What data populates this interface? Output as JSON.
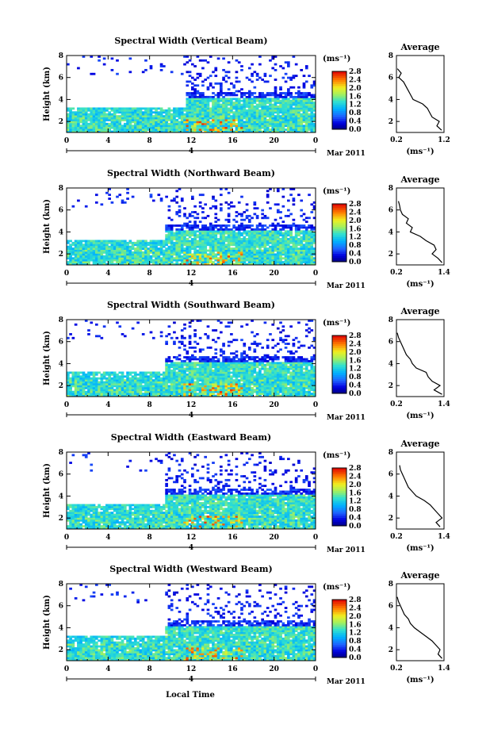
{
  "figure": {
    "xlabel": "Local Time",
    "date_label": "Mar 2011",
    "day_label": "4",
    "unit_label": "(ms⁻¹)",
    "average_title": "Average",
    "average_xlabel": "(ms⁻¹)"
  },
  "chart_data": [
    {
      "type": "heatmap",
      "title": "Spectral Width (Vertical Beam)",
      "ylabel": "Height (km)",
      "x_ticks": [
        "0",
        "4",
        "8",
        "12",
        "16",
        "20",
        "0"
      ],
      "xlim": [
        0,
        24
      ],
      "ylim": [
        1,
        8
      ],
      "y_ticks": [
        "2",
        "4",
        "6",
        "8"
      ],
      "colorbar": {
        "range": [
          0.0,
          2.8
        ],
        "ticks": [
          "2.8",
          "2.4",
          "2.0",
          "1.6",
          "1.2",
          "0.8",
          "0.4",
          "0.0"
        ]
      },
      "avg_profile": {
        "xlim": [
          0.2,
          1.2
        ],
        "x_ticks": [
          "0.2",
          "1.2"
        ],
        "ylim": [
          1,
          8
        ],
        "y_ticks": [
          "2",
          "4",
          "6",
          "8"
        ],
        "height": [
          1.2,
          1.6,
          2.0,
          2.4,
          2.8,
          3.2,
          3.6,
          4.0,
          4.4,
          4.8,
          5.2,
          5.6,
          6.0,
          6.4,
          6.8
        ],
        "width": [
          1.15,
          1.05,
          1.1,
          0.95,
          0.9,
          0.85,
          0.75,
          0.55,
          0.5,
          0.45,
          0.4,
          0.35,
          0.25,
          0.3,
          0.22
        ]
      }
    },
    {
      "type": "heatmap",
      "title": "Spectral Width (Northward Beam)",
      "ylabel": "Height (km)",
      "x_ticks": [
        "0",
        "4",
        "8",
        "12",
        "16",
        "20",
        "0"
      ],
      "xlim": [
        0,
        24
      ],
      "ylim": [
        1,
        8
      ],
      "y_ticks": [
        "2",
        "4",
        "6",
        "8"
      ],
      "colorbar": {
        "range": [
          0.0,
          2.8
        ],
        "ticks": [
          "2.8",
          "2.4",
          "2.0",
          "1.6",
          "1.2",
          "0.8",
          "0.4",
          "0.0"
        ]
      },
      "avg_profile": {
        "xlim": [
          0.2,
          1.4
        ],
        "x_ticks": [
          "0.2",
          "1.4"
        ],
        "ylim": [
          1,
          8
        ],
        "y_ticks": [
          "2",
          "4",
          "6",
          "8"
        ],
        "height": [
          1.2,
          1.6,
          2.0,
          2.4,
          2.8,
          3.2,
          3.6,
          4.0,
          4.4,
          4.8,
          5.2,
          5.6,
          6.0,
          6.4,
          6.8
        ],
        "width": [
          1.35,
          1.25,
          1.1,
          1.2,
          1.15,
          0.95,
          0.8,
          0.55,
          0.6,
          0.45,
          0.5,
          0.35,
          0.3,
          0.28,
          0.25
        ]
      }
    },
    {
      "type": "heatmap",
      "title": "Spectral Width (Southward Beam)",
      "ylabel": "Height (km)",
      "x_ticks": [
        "0",
        "4",
        "8",
        "12",
        "16",
        "20",
        "0"
      ],
      "xlim": [
        0,
        24
      ],
      "ylim": [
        1,
        8
      ],
      "y_ticks": [
        "2",
        "4",
        "6",
        "8"
      ],
      "colorbar": {
        "range": [
          0.0,
          2.8
        ],
        "ticks": [
          "2.8",
          "2.4",
          "2.0",
          "1.6",
          "1.2",
          "0.8",
          "0.4",
          "0.0"
        ]
      },
      "avg_profile": {
        "xlim": [
          0.2,
          1.4
        ],
        "x_ticks": [
          "0.2",
          "1.4"
        ],
        "ylim": [
          1,
          8
        ],
        "y_ticks": [
          "2",
          "4",
          "6",
          "8"
        ],
        "height": [
          1.2,
          1.6,
          2.0,
          2.4,
          2.8,
          3.2,
          3.6,
          4.0,
          4.4,
          4.8,
          5.2,
          5.6,
          6.0,
          6.4,
          6.8
        ],
        "width": [
          1.35,
          1.15,
          1.3,
          1.1,
          1.0,
          0.95,
          0.7,
          0.6,
          0.55,
          0.45,
          0.4,
          0.35,
          0.3,
          0.25,
          0.22
        ]
      }
    },
    {
      "type": "heatmap",
      "title": "Spectral Width (Eastward Beam)",
      "ylabel": "Height (km)",
      "x_ticks": [
        "0",
        "4",
        "8",
        "12",
        "16",
        "20",
        "0"
      ],
      "xlim": [
        0,
        24
      ],
      "ylim": [
        1,
        8
      ],
      "y_ticks": [
        "2",
        "4",
        "6",
        "8"
      ],
      "colorbar": {
        "range": [
          0.0,
          2.8
        ],
        "ticks": [
          "2.8",
          "2.4",
          "2.0",
          "1.6",
          "1.2",
          "0.8",
          "0.4",
          "0.0"
        ]
      },
      "avg_profile": {
        "xlim": [
          0.2,
          1.4
        ],
        "x_ticks": [
          "0.2",
          "1.4"
        ],
        "ylim": [
          1,
          8
        ],
        "y_ticks": [
          "2",
          "4",
          "6",
          "8"
        ],
        "height": [
          1.2,
          1.6,
          2.0,
          2.4,
          2.8,
          3.2,
          3.6,
          4.0,
          4.4,
          4.8,
          5.2,
          5.6,
          6.0,
          6.4,
          6.8
        ],
        "width": [
          1.3,
          1.2,
          1.35,
          1.25,
          1.15,
          1.05,
          0.9,
          0.7,
          0.6,
          0.5,
          0.45,
          0.4,
          0.35,
          0.3,
          0.28
        ]
      }
    },
    {
      "type": "heatmap",
      "title": "Spectral Width (Westward Beam)",
      "ylabel": "Height (km)",
      "x_ticks": [
        "0",
        "4",
        "8",
        "12",
        "16",
        "20",
        "0"
      ],
      "xlim": [
        0,
        24
      ],
      "ylim": [
        1,
        8
      ],
      "y_ticks": [
        "2",
        "4",
        "6",
        "8"
      ],
      "colorbar": {
        "range": [
          0.0,
          2.8
        ],
        "ticks": [
          "2.8",
          "2.4",
          "2.0",
          "1.6",
          "1.2",
          "0.8",
          "0.4",
          "0.0"
        ]
      },
      "avg_profile": {
        "xlim": [
          0.2,
          1.4
        ],
        "x_ticks": [
          "0.2",
          "1.4"
        ],
        "ylim": [
          1,
          8
        ],
        "y_ticks": [
          "2",
          "4",
          "6",
          "8"
        ],
        "height": [
          1.2,
          1.6,
          2.0,
          2.4,
          2.8,
          3.2,
          3.6,
          4.0,
          4.4,
          4.8,
          5.2,
          5.6,
          6.0,
          6.4,
          6.8
        ],
        "width": [
          1.35,
          1.25,
          1.3,
          1.2,
          1.1,
          0.95,
          0.8,
          0.65,
          0.55,
          0.5,
          0.4,
          0.35,
          0.3,
          0.25,
          0.22
        ]
      }
    }
  ]
}
